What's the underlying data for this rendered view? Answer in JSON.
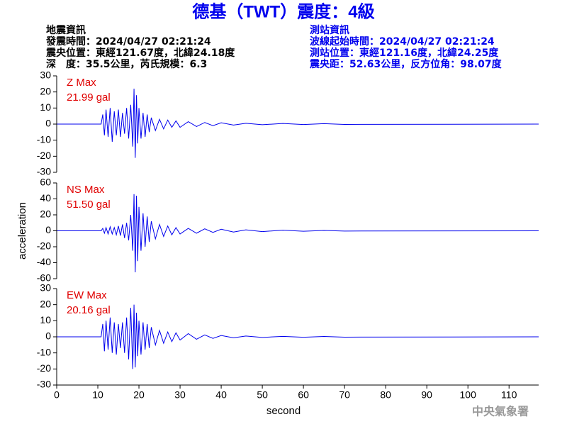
{
  "header": {
    "title": "德基（TWT）震度：4級",
    "left": [
      "地震資訊",
      "發震時間：2024/04/27 02:21:24",
      "震央位置：東經121.67度，北緯24.18度",
      "深　度：35.5公里，芮氏規模：6.3"
    ],
    "right": [
      "測站資訊",
      "波線起始時間：2024/04/27 02:21:24",
      "測站位置：東經121.16度，北緯24.25度",
      "震央距：52.63公里，反方位角：98.07度"
    ],
    "footer": "中央氣象署"
  },
  "chart_data": [
    {
      "type": "line",
      "label": "Z Max",
      "max_label": "21.99 gal",
      "color": "#0000ee",
      "x": [
        0,
        10.8,
        11.2,
        11.6,
        12,
        12.5,
        13,
        13.5,
        14,
        14.5,
        15,
        15.5,
        16,
        16.5,
        17,
        17.5,
        18,
        18.5,
        18.8,
        19.1,
        19.4,
        19.7,
        20,
        20.5,
        21,
        21.5,
        22,
        22.5,
        23,
        24,
        25,
        26,
        27,
        28,
        29,
        30,
        32,
        34,
        36,
        38,
        40,
        43,
        46,
        50,
        55,
        60,
        65,
        70,
        117.2
      ],
      "values": [
        0,
        0,
        6,
        -7,
        9,
        -8,
        10,
        -11,
        8,
        -7,
        9,
        -8,
        7,
        -6,
        10,
        -9,
        12,
        -14,
        22,
        -21,
        18,
        -12,
        10,
        -9,
        7,
        -8,
        6,
        -5,
        4,
        -4,
        3,
        -3,
        2.5,
        -2,
        2,
        -2,
        1.5,
        -1.5,
        1,
        -1,
        0.8,
        -0.6,
        0.5,
        -0.4,
        0.4,
        -0.3,
        0.3,
        -0.2,
        0
      ],
      "xlim": [
        0,
        117.2
      ],
      "ylim": [
        -30,
        30
      ],
      "yticks": [
        30,
        20,
        10,
        0,
        -10,
        -20,
        -30
      ]
    },
    {
      "type": "line",
      "label": "NS Max",
      "max_label": "51.50 gal",
      "color": "#0000ee",
      "y_label": "acceleration",
      "x": [
        0,
        10.8,
        11.2,
        11.6,
        12,
        12.5,
        13,
        13.5,
        14,
        14.5,
        15,
        15.5,
        16,
        16.5,
        17,
        17.5,
        18,
        18.5,
        18.8,
        19.1,
        19.4,
        19.7,
        20,
        20.5,
        21,
        21.5,
        22,
        22.5,
        23,
        24,
        25,
        26,
        27,
        28,
        29,
        30,
        32,
        34,
        36,
        38,
        40,
        43,
        46,
        50,
        55,
        60,
        65,
        70,
        117.2
      ],
      "values": [
        0,
        0,
        3,
        -3,
        4,
        -4,
        5,
        -4,
        4,
        -5,
        6,
        -6,
        8,
        -9,
        10,
        -12,
        20,
        -25,
        46,
        -52,
        44,
        -38,
        30,
        -25,
        22,
        -20,
        18,
        -14,
        12,
        -10,
        8,
        -7,
        6,
        -5,
        4,
        -4,
        3,
        -3,
        2.5,
        -2,
        2,
        -1.5,
        1.2,
        -1,
        0.8,
        -0.6,
        0.4,
        -0.3,
        0
      ],
      "xlim": [
        0,
        117.2
      ],
      "ylim": [
        -60,
        60
      ],
      "yticks": [
        60,
        40,
        20,
        0,
        -20,
        -40,
        -60
      ]
    },
    {
      "type": "line",
      "label": "EW Max",
      "max_label": "20.16 gal",
      "color": "#0000ee",
      "x_label": "second",
      "x": [
        0,
        10.8,
        11.2,
        11.6,
        12,
        12.5,
        13,
        13.5,
        14,
        14.5,
        15,
        15.5,
        16,
        16.5,
        17,
        17.5,
        18,
        18.5,
        18.8,
        19.1,
        19.4,
        19.7,
        20,
        20.5,
        21,
        21.5,
        22,
        22.5,
        23,
        24,
        25,
        26,
        27,
        28,
        29,
        30,
        32,
        34,
        36,
        38,
        40,
        43,
        46,
        50,
        55,
        60,
        65,
        70,
        117.2
      ],
      "values": [
        0,
        0,
        8,
        -9,
        10,
        -8,
        12,
        -10,
        9,
        -11,
        8,
        -7,
        9,
        -10,
        12,
        -14,
        18,
        -20,
        20,
        -19,
        15,
        -12,
        10,
        -11,
        9,
        -8,
        8,
        -7,
        6,
        -5,
        4,
        -4,
        3,
        -3,
        2.5,
        -2,
        2,
        -1.5,
        1.2,
        -1,
        0.8,
        -0.6,
        0.5,
        -0.4,
        0.3,
        -0.3,
        0.2,
        -0.2,
        0
      ],
      "xlim": [
        0,
        117.2
      ],
      "ylim": [
        -30,
        30
      ],
      "yticks": [
        30,
        20,
        10,
        0,
        -10,
        -20,
        -30
      ],
      "xticks": [
        0,
        10,
        20,
        30,
        40,
        50,
        60,
        70,
        80,
        90,
        100,
        110
      ]
    }
  ]
}
